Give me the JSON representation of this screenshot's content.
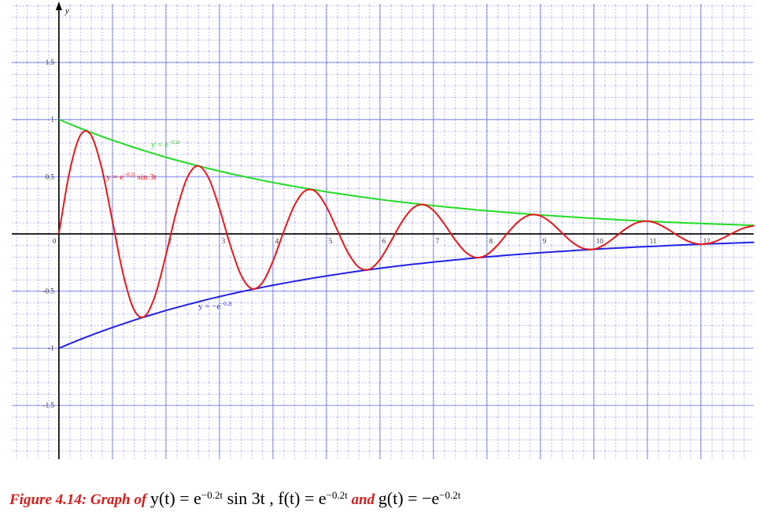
{
  "chart_data": {
    "type": "line",
    "y_axis_label": "y",
    "xlim": [
      -0.88,
      12.99
    ],
    "ylim": [
      -1.97,
      2.01
    ],
    "xticks": [
      0,
      1,
      2,
      3,
      4,
      5,
      6,
      7,
      8,
      9,
      10,
      11,
      12
    ],
    "yticks": [
      -1.5,
      -1,
      -0.5,
      0.5,
      1,
      1.5
    ],
    "grid": true,
    "x": [
      0,
      0.2,
      0.4,
      0.6,
      0.8,
      1,
      1.2,
      1.4,
      1.6,
      1.8,
      2,
      2.2,
      2.4,
      2.6,
      2.8,
      3,
      3.2,
      3.4,
      3.6,
      3.8,
      4,
      4.2,
      4.4,
      4.6,
      4.8,
      5,
      5.2,
      5.4,
      5.6,
      5.8,
      6,
      6.2,
      6.4,
      6.6,
      6.8,
      7,
      7.2,
      7.4,
      7.6,
      7.8,
      8,
      8.2,
      8.4,
      8.6,
      8.8,
      9,
      9.2,
      9.4,
      9.6,
      9.8,
      10,
      10.2,
      10.4,
      10.6,
      10.8,
      11,
      11.2,
      11.4,
      11.6,
      11.8,
      12,
      12.2,
      12.4,
      12.6,
      12.8,
      13
    ],
    "series": [
      {
        "color": "#22dd22",
        "label": [
          {
            "text": "y = e"
          },
          {
            "text": "−0.2t",
            "sup": true
          }
        ],
        "values": [
          1,
          0.961,
          0.923,
          0.887,
          0.852,
          0.819,
          0.787,
          0.756,
          0.726,
          0.698,
          0.67,
          0.644,
          0.619,
          0.595,
          0.571,
          0.549,
          0.527,
          0.507,
          0.487,
          0.468,
          0.449,
          0.432,
          0.415,
          0.399,
          0.383,
          0.368,
          0.354,
          0.34,
          0.326,
          0.314,
          0.301,
          0.289,
          0.278,
          0.267,
          0.257,
          0.247,
          0.237,
          0.228,
          0.219,
          0.21,
          0.202,
          0.194,
          0.186,
          0.179,
          0.172,
          0.165,
          0.159,
          0.153,
          0.147,
          0.141,
          0.135,
          0.13,
          0.125,
          0.12,
          0.115,
          0.111,
          0.107,
          0.102,
          0.098,
          0.094,
          0.091,
          0.087,
          0.084,
          0.081,
          0.077,
          0.074
        ]
      },
      {
        "color": "#2222e6",
        "label": [
          {
            "text": "y = −e"
          },
          {
            "text": "−0.2t",
            "sup": true
          }
        ],
        "values": [
          -1,
          -0.961,
          -0.923,
          -0.887,
          -0.852,
          -0.819,
          -0.787,
          -0.756,
          -0.726,
          -0.698,
          -0.67,
          -0.644,
          -0.619,
          -0.595,
          -0.571,
          -0.549,
          -0.527,
          -0.507,
          -0.487,
          -0.468,
          -0.449,
          -0.432,
          -0.415,
          -0.399,
          -0.383,
          -0.368,
          -0.354,
          -0.34,
          -0.326,
          -0.314,
          -0.301,
          -0.289,
          -0.278,
          -0.267,
          -0.257,
          -0.247,
          -0.237,
          -0.228,
          -0.219,
          -0.21,
          -0.202,
          -0.194,
          -0.186,
          -0.179,
          -0.172,
          -0.165,
          -0.159,
          -0.153,
          -0.147,
          -0.141,
          -0.135,
          -0.13,
          -0.125,
          -0.12,
          -0.115,
          -0.111,
          -0.107,
          -0.102,
          -0.098,
          -0.094,
          -0.091,
          -0.087,
          -0.084,
          -0.081,
          -0.077,
          -0.074
        ]
      },
      {
        "color": "#e81818",
        "label": [
          {
            "text": "y = e"
          },
          {
            "text": "−0.2t",
            "sup": true
          },
          {
            "text": " sin 3t"
          }
        ],
        "values": [
          0,
          0.543,
          0.86,
          0.864,
          0.576,
          0.116,
          -0.348,
          -0.659,
          -0.723,
          -0.539,
          -0.187,
          0.201,
          0.491,
          0.594,
          0.488,
          0.226,
          -0.092,
          -0.355,
          -0.478,
          -0.43,
          -0.241,
          0.015,
          0.246,
          0.376,
          0.37,
          0.239,
          0.038,
          -0.16,
          -0.289,
          -0.311,
          -0.226,
          -0.072,
          0.095,
          0.217,
          0.257,
          0.206,
          0.09,
          -0.047,
          -0.158,
          -0.207,
          -0.183,
          -0.099,
          0.013,
          0.111,
          0.164,
          0.158,
          0.099,
          0.011,
          -0.074,
          -0.127,
          -0.134,
          -0.095,
          -0.027,
          0.045,
          0.096,
          0.111,
          0.087,
          0.036,
          -0.024,
          -0.071,
          -0.09,
          -0.078,
          -0.04,
          0.008,
          0.05,
          0.072
        ]
      }
    ],
    "caption": [
      {
        "text": "Figure 4.14: Graph of ",
        "style": "figure"
      },
      {
        "text": "y(t) = e"
      },
      {
        "text": "−0.2t",
        "sup": true
      },
      {
        "text": " sin 3t ,  f(t) = e"
      },
      {
        "text": "−0.2t",
        "sup": true
      },
      {
        "text": " and ",
        "style": "figure"
      },
      {
        "text": "g(t) = −e"
      },
      {
        "text": "−0.2t",
        "sup": true
      }
    ]
  }
}
